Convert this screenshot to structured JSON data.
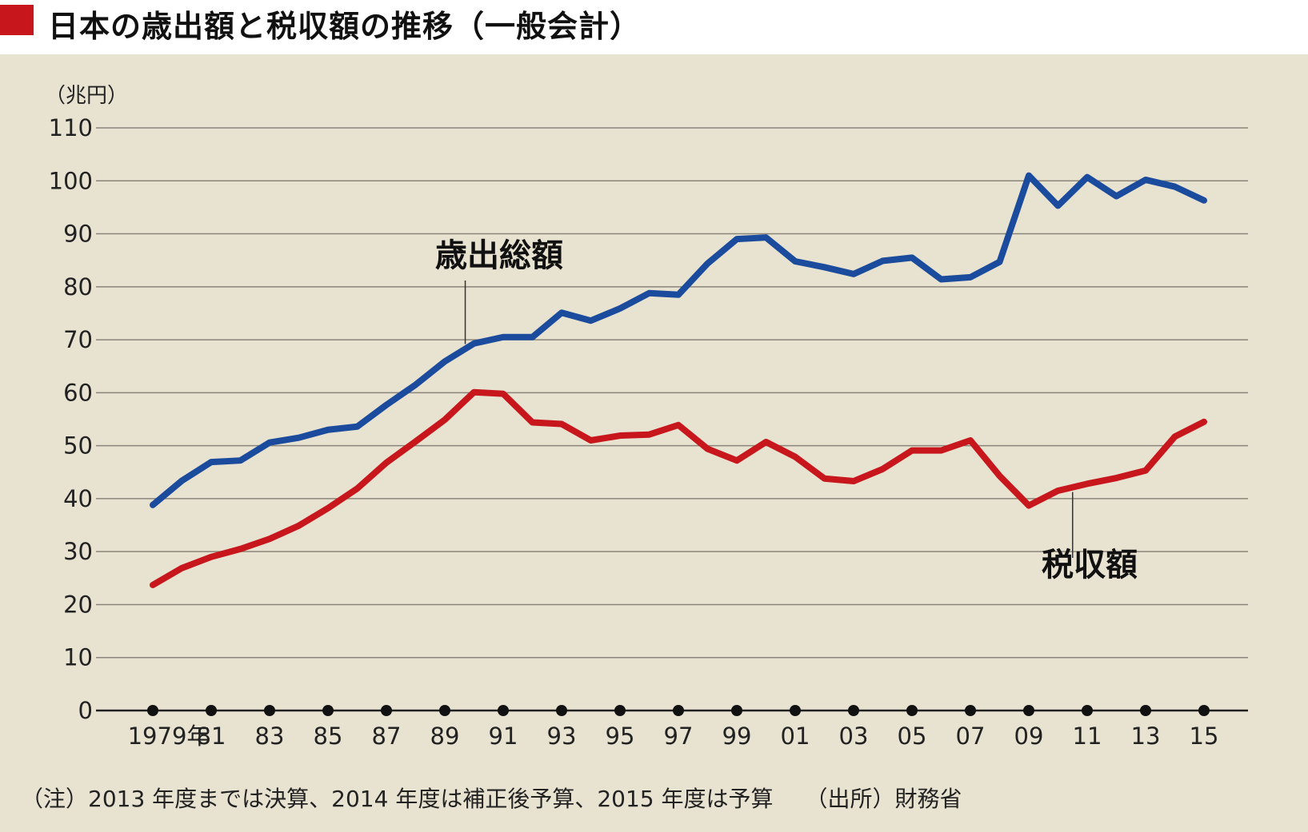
{
  "header": {
    "title": "日本の歳出額と税収額の推移（一般会計）",
    "accent_color": "#c8161d"
  },
  "footnote": {
    "note": "（注）2013 年度までは決算、2014 年度は補正後予算、2015 年度は予算",
    "source": "（出所）財務省"
  },
  "chart_data": {
    "type": "line",
    "title": "日本の歳出額と税収額の推移（一般会計）",
    "ylabel": "（兆円）",
    "xlabel": "",
    "ylim": [
      0,
      110
    ],
    "yticks": [
      "0",
      "10",
      "20",
      "30",
      "40",
      "50",
      "60",
      "70",
      "80",
      "90",
      "100",
      "110"
    ],
    "grid": true,
    "x": [
      1979,
      1980,
      1981,
      1982,
      1983,
      1984,
      1985,
      1986,
      1987,
      1988,
      1989,
      1990,
      1991,
      1992,
      1993,
      1994,
      1995,
      1996,
      1997,
      1998,
      1999,
      2000,
      2001,
      2002,
      2003,
      2004,
      2005,
      2006,
      2007,
      2008,
      2009,
      2010,
      2011,
      2012,
      2013,
      2014,
      2015
    ],
    "xtick_years": [
      1979,
      1981,
      1983,
      1985,
      1987,
      1989,
      1991,
      1993,
      1995,
      1997,
      1999,
      2001,
      2003,
      2005,
      2007,
      2009,
      2011,
      2013,
      2015
    ],
    "xtick_labels": [
      "1979年",
      "81",
      "83",
      "85",
      "87",
      "89",
      "91",
      "93",
      "95",
      "97",
      "99",
      "01",
      "03",
      "05",
      "07",
      "09",
      "11",
      "13",
      "15"
    ],
    "series": [
      {
        "name": "歳出総額",
        "color": "#1a4b9c",
        "values": [
          38.8,
          43.4,
          46.9,
          47.2,
          50.6,
          51.5,
          53.0,
          53.6,
          57.7,
          61.5,
          65.9,
          69.3,
          70.5,
          70.5,
          75.1,
          73.6,
          75.9,
          78.8,
          78.5,
          84.4,
          89.0,
          89.3,
          84.8,
          83.7,
          82.4,
          84.9,
          85.5,
          81.4,
          81.8,
          84.7,
          101.0,
          95.3,
          100.7,
          97.1,
          100.2,
          98.9,
          96.3
        ]
      },
      {
        "name": "税収額",
        "color": "#c8161d",
        "values": [
          23.7,
          26.9,
          29.0,
          30.5,
          32.4,
          34.9,
          38.2,
          41.9,
          46.8,
          50.8,
          54.9,
          60.1,
          59.8,
          54.4,
          54.1,
          51.0,
          51.9,
          52.1,
          53.9,
          49.4,
          47.2,
          50.7,
          47.9,
          43.8,
          43.3,
          45.6,
          49.1,
          49.1,
          51.0,
          44.3,
          38.7,
          41.5,
          42.8,
          43.9,
          45.3,
          51.7,
          54.5
        ]
      }
    ],
    "annotations": [
      {
        "text": "歳出総額",
        "series": "歳出総額",
        "year": 1989.7
      },
      {
        "text": "税収額",
        "series": "税収額",
        "year": 2010.5
      }
    ]
  }
}
